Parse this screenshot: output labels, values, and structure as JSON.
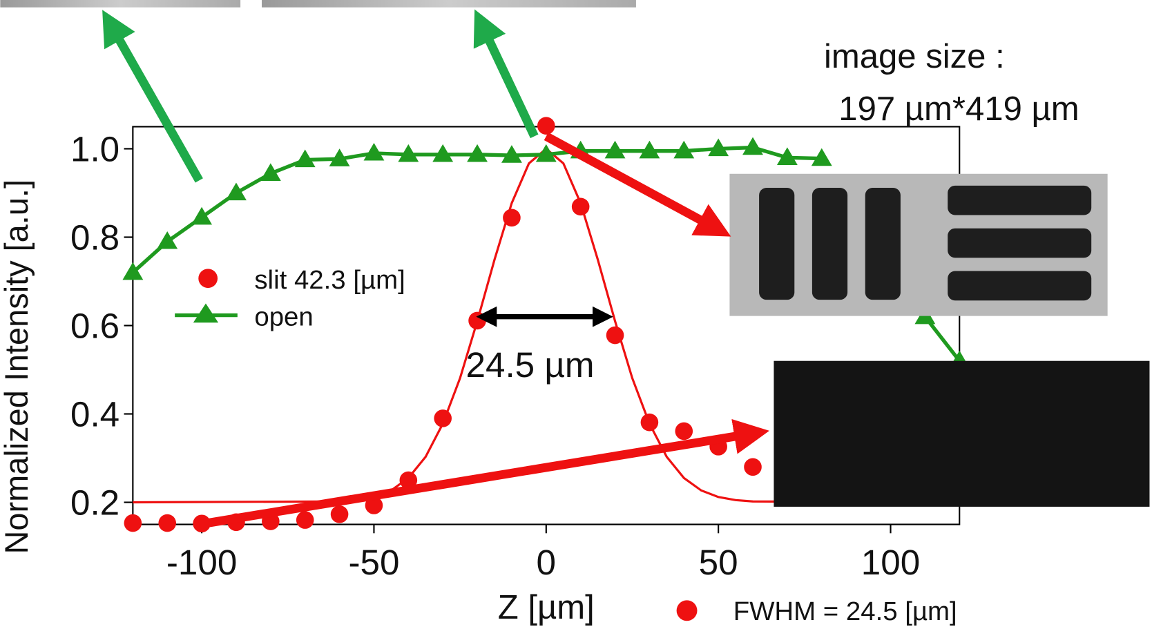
{
  "chart_data": {
    "type": "scatter",
    "xlabel": "Z [µm]",
    "ylabel": "Normalized Intensity [a.u.]",
    "xlim": [
      -120,
      120
    ],
    "ylim": [
      0.15,
      1.05
    ],
    "xticks": [
      -100,
      -50,
      0,
      50,
      100
    ],
    "yticks": [
      0.2,
      0.4,
      0.6,
      0.8,
      {
        "value": 1,
        "label": "1.0"
      }
    ],
    "series": [
      {
        "name": "slit 42.3 [µm]",
        "color": "#ee1111",
        "marker": "circle",
        "x": [
          -120,
          -110,
          -100,
          -90,
          -80,
          -70,
          -60,
          -50,
          -40,
          -30,
          -20,
          -10,
          0,
          10,
          20,
          30,
          40,
          50,
          60
        ],
        "values": [
          0.153,
          0.153,
          0.152,
          0.155,
          0.157,
          0.16,
          0.173,
          0.193,
          0.25,
          0.39,
          0.611,
          0.844,
          1.052,
          0.869,
          0.578,
          0.381,
          0.361,
          0.326,
          0.28
        ]
      },
      {
        "name": "open",
        "color": "#1f9a1f",
        "marker": "triangle",
        "x": [
          -120,
          -110,
          -100,
          -90,
          -80,
          -70,
          -60,
          -50,
          -40,
          -30,
          -20,
          -10,
          0,
          10,
          20,
          30,
          40,
          50,
          60,
          70,
          80,
          90,
          100,
          110,
          120
        ],
        "values": [
          0.72,
          0.79,
          0.845,
          0.9,
          0.944,
          0.975,
          0.977,
          0.99,
          0.987,
          0.987,
          0.987,
          0.985,
          0.987,
          0.995,
          0.995,
          0.995,
          0.995,
          1.0,
          1.003,
          0.98,
          0.978,
          null,
          null,
          0.62,
          0.52
        ]
      }
    ],
    "fit": {
      "color": "#ee1111",
      "x": [
        -120,
        -60,
        -55,
        -50,
        -45,
        -40,
        -35,
        -30,
        -25,
        -20,
        -15,
        -10,
        -5,
        0,
        5,
        10,
        15,
        20,
        25,
        30,
        35,
        40,
        45,
        50,
        55,
        60,
        120
      ],
      "values": [
        0.2,
        0.202,
        0.205,
        0.212,
        0.227,
        0.255,
        0.303,
        0.378,
        0.481,
        0.61,
        0.749,
        0.877,
        0.967,
        1.0,
        0.967,
        0.877,
        0.749,
        0.61,
        0.481,
        0.378,
        0.303,
        0.255,
        0.227,
        0.212,
        0.205,
        0.202,
        0.2
      ]
    },
    "annotations": {
      "width_label": "24.5 µm",
      "fwhm": "FWHM = 24.5 [µm]",
      "image_size_title": "image size :",
      "image_size_value": "197 µm*419 µm"
    }
  }
}
